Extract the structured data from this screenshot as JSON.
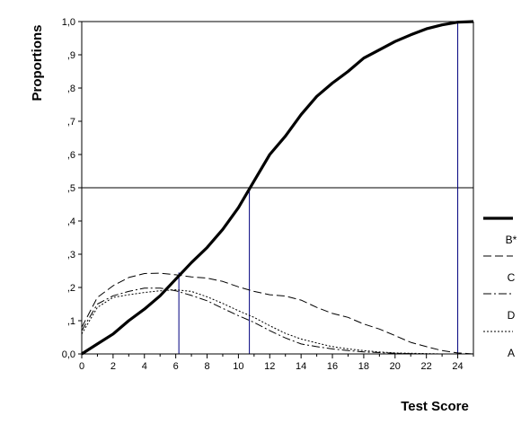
{
  "chart_data": {
    "type": "line",
    "title": "",
    "xlabel": "Test Score",
    "ylabel": "Proportions",
    "xlim": [
      0,
      25
    ],
    "ylim": [
      0,
      1
    ],
    "x_ticks": [
      0,
      2,
      4,
      6,
      8,
      10,
      12,
      14,
      16,
      18,
      20,
      22,
      24
    ],
    "x_tick_labels": [
      "0",
      "2",
      "4",
      "6",
      "8",
      "10",
      "12",
      "14",
      "16",
      "18",
      "20",
      "22",
      "24"
    ],
    "y_ticks": [
      0,
      0.1,
      0.2,
      0.3,
      0.4,
      0.5,
      0.6,
      0.7,
      0.8,
      0.9,
      1.0
    ],
    "y_tick_labels": [
      "0,0",
      ",1",
      ",2",
      ",3",
      ",4",
      ",5",
      ",6",
      ",7",
      ",8",
      ",9",
      "1,0"
    ],
    "grid": false,
    "legend_position": "right",
    "reference_lines": {
      "horizontal": [
        0.5
      ],
      "vertical": [
        6.2,
        10.7,
        24.0
      ]
    },
    "series": [
      {
        "name": "B*",
        "style": "thick-solid",
        "x": [
          0,
          1,
          2,
          3,
          4,
          5,
          6,
          7,
          8,
          9,
          10,
          11,
          12,
          13,
          14,
          15,
          16,
          17,
          18,
          19,
          20,
          21,
          22,
          23,
          24,
          25
        ],
        "y": [
          0.0,
          0.03,
          0.06,
          0.1,
          0.135,
          0.175,
          0.225,
          0.275,
          0.32,
          0.375,
          0.44,
          0.52,
          0.6,
          0.655,
          0.72,
          0.775,
          0.815,
          0.85,
          0.89,
          0.915,
          0.94,
          0.96,
          0.978,
          0.99,
          0.998,
          1.0
        ]
      },
      {
        "name": "C",
        "style": "long-dash",
        "x": [
          0,
          1,
          2,
          3,
          4,
          5,
          6,
          7,
          8,
          9,
          10,
          11,
          12,
          13,
          14,
          15,
          16,
          17,
          18,
          19,
          20,
          21,
          22,
          23,
          24,
          25
        ],
        "y": [
          0.08,
          0.17,
          0.205,
          0.23,
          0.242,
          0.243,
          0.238,
          0.232,
          0.228,
          0.218,
          0.202,
          0.188,
          0.178,
          0.174,
          0.162,
          0.14,
          0.122,
          0.11,
          0.09,
          0.075,
          0.055,
          0.035,
          0.022,
          0.01,
          0.003,
          0.0
        ]
      },
      {
        "name": "D",
        "style": "dash-dot",
        "x": [
          0,
          1,
          2,
          3,
          4,
          5,
          6,
          7,
          8,
          9,
          10,
          11,
          12,
          13,
          14,
          15,
          16,
          17,
          18,
          19,
          20,
          21,
          22,
          23,
          24,
          25
        ],
        "y": [
          0.07,
          0.15,
          0.175,
          0.188,
          0.198,
          0.198,
          0.19,
          0.176,
          0.16,
          0.137,
          0.115,
          0.095,
          0.07,
          0.048,
          0.03,
          0.022,
          0.015,
          0.01,
          0.006,
          0.004,
          0.002,
          0.001,
          0.0,
          0.0,
          0.0,
          0.0
        ]
      },
      {
        "name": "A",
        "style": "dotted",
        "x": [
          0,
          1,
          2,
          3,
          4,
          5,
          6,
          7,
          8,
          9,
          10,
          11,
          12,
          13,
          14,
          15,
          16,
          17,
          18,
          19,
          20,
          21,
          22,
          23,
          24,
          25
        ],
        "y": [
          0.06,
          0.14,
          0.17,
          0.178,
          0.185,
          0.19,
          0.193,
          0.188,
          0.172,
          0.152,
          0.13,
          0.11,
          0.085,
          0.062,
          0.045,
          0.033,
          0.022,
          0.015,
          0.01,
          0.006,
          0.003,
          0.002,
          0.001,
          0.0,
          0.0,
          0.0
        ]
      }
    ],
    "colors": {
      "axis": "#000000",
      "reference_line": "#000000",
      "vertical_reference": "#00007f"
    }
  }
}
